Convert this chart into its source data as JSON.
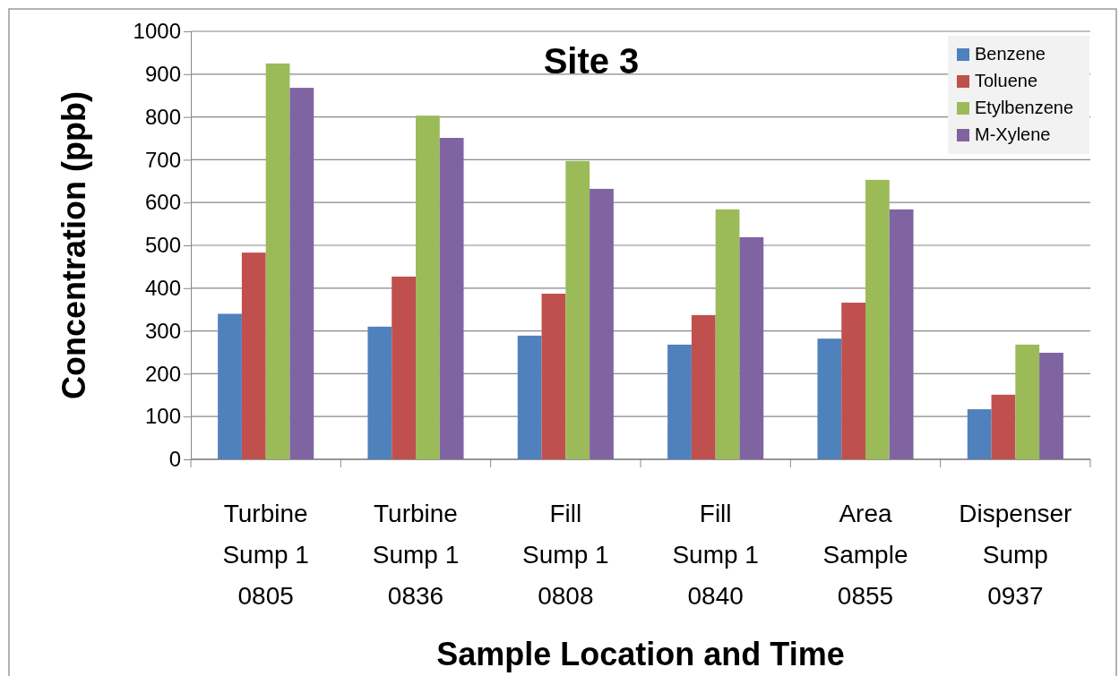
{
  "chart_data": {
    "type": "bar",
    "title": "Site 3",
    "xlabel": "Sample Location and Time",
    "ylabel": "Concentration (ppb)",
    "categories": [
      "Turbine\nSump 1\n0805",
      "Turbine\nSump 1\n0836",
      "Fill\nSump 1\n0808",
      "Fill\nSump 1\n0840",
      "Area\nSample\n0855",
      "Dispenser\nSump\n0937"
    ],
    "series": [
      {
        "name": "Benzene",
        "color": "#4f81bd",
        "values": [
          340,
          310,
          289,
          268,
          282,
          117
        ]
      },
      {
        "name": "Toluene",
        "color": "#c0504d",
        "values": [
          483,
          427,
          387,
          337,
          366,
          151
        ]
      },
      {
        "name": "Etylbenzene",
        "color": "#9bbb59",
        "values": [
          925,
          803,
          697,
          584,
          653,
          268
        ]
      },
      {
        "name": "M-Xylene",
        "color": "#8064a2",
        "values": [
          868,
          751,
          632,
          519,
          584,
          249
        ]
      }
    ],
    "ylim": [
      0,
      1000
    ],
    "yticks": [
      0,
      100,
      200,
      300,
      400,
      500,
      600,
      700,
      800,
      900,
      1000
    ],
    "grid": "y",
    "legend": "top right"
  }
}
